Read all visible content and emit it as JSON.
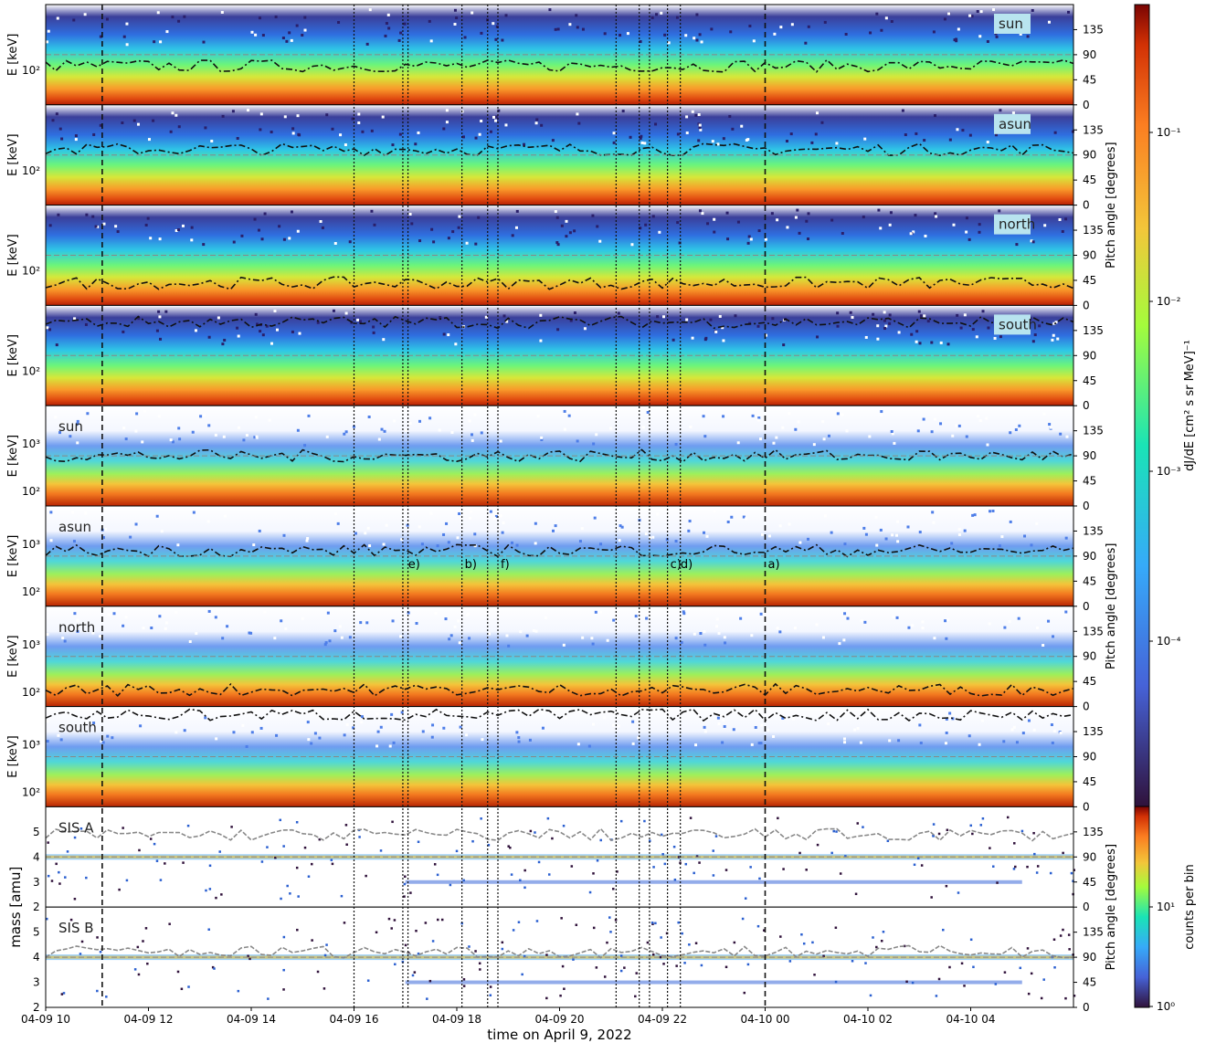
{
  "chart_data": {
    "type": "heatmap",
    "xlabel": "time on April 9, 2022",
    "x_ticks": [
      "04-09 10",
      "04-09 12",
      "04-09 14",
      "04-09 16",
      "04-09 18",
      "04-09 20",
      "04-09 22",
      "04-10 00",
      "04-10 02",
      "04-10 04"
    ],
    "x_range_hours": [
      10,
      30
    ],
    "energy_axis": {
      "label": "E  [keV]",
      "scale": "log",
      "ticks_group1": [
        "10²"
      ],
      "ticks_group2": [
        "10³",
        "10²"
      ]
    },
    "pitch_angle_axis": {
      "label": "Pitch angle [degrees]",
      "ticks": [
        "135",
        "90",
        "45",
        "0"
      ],
      "range": [
        0,
        180
      ]
    },
    "mass_axis": {
      "label": "mass [amu]",
      "ticks": [
        "5",
        "4",
        "3",
        "2"
      ],
      "range": [
        2,
        6
      ]
    },
    "panels": [
      {
        "label": "sun",
        "group": 1,
        "tag_style": "box"
      },
      {
        "label": "asun",
        "group": 1,
        "tag_style": "box"
      },
      {
        "label": "north",
        "group": 1,
        "tag_style": "box"
      },
      {
        "label": "south",
        "group": 1,
        "tag_style": "box"
      },
      {
        "label": "sun",
        "group": 2,
        "tag_style": "plain"
      },
      {
        "label": "asun",
        "group": 2,
        "tag_style": "plain"
      },
      {
        "label": "north",
        "group": 2,
        "tag_style": "plain"
      },
      {
        "label": "south",
        "group": 2,
        "tag_style": "plain"
      },
      {
        "label": "SIS A",
        "group": 3,
        "tag_style": "plain"
      },
      {
        "label": "SIS B",
        "group": 3,
        "tag_style": "plain"
      }
    ],
    "events": [
      {
        "label": "e)",
        "time_hours": 17.0
      },
      {
        "label": "b)",
        "time_hours": 18.1
      },
      {
        "label": "f)",
        "time_hours": 18.8
      },
      {
        "label": "c)",
        "time_hours": 22.1
      },
      {
        "label": "d)",
        "time_hours": 22.3
      },
      {
        "label": "a)",
        "time_hours": 24.0
      }
    ],
    "dashed_lines_hours": [
      11.1,
      24.0
    ],
    "dotted_lines_hours": [
      16.0,
      16.95,
      17.05,
      18.1,
      18.6,
      18.8,
      21.1,
      21.55,
      21.75,
      22.1,
      22.35
    ],
    "colorbar_flux": {
      "label": "dJ/dE [cm² s sr MeV]⁻¹",
      "scale": "log",
      "ticks": [
        "10⁻¹",
        "10⁻²",
        "10⁻³",
        "10⁻⁴"
      ]
    },
    "colorbar_counts": {
      "label": "counts per bin",
      "scale": "log",
      "ticks": [
        "10¹",
        "10⁰"
      ]
    }
  }
}
